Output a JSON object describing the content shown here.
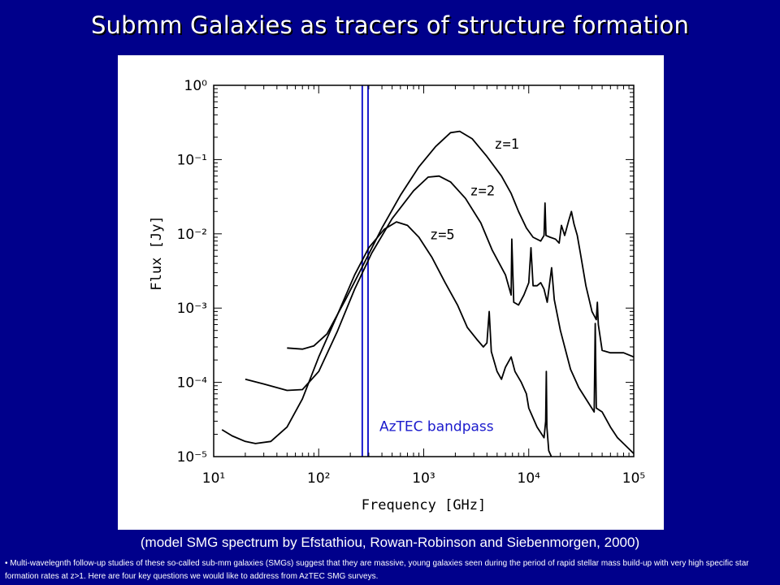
{
  "slide": {
    "title": "Submm Galaxies as tracers of structure formation",
    "caption": "(model SMG spectrum by Efstathiou, Rowan-Robinson and Siebenmorgen, 2000)",
    "footnote": "• Multi-wavelegnth follow-up studies of these so-called sub-mm galaxies (SMGs) suggest that they are massive, young galaxies seen during the period of rapid stellar mass build-up with very high specific star formation rates at z>1. Here are four key questions we would like to address from AzTEC SMG surveys."
  },
  "chart_data": {
    "type": "line",
    "title": "",
    "xlabel": "Frequency [GHz]",
    "ylabel": "Flux [Jy]",
    "xscale": "log",
    "yscale": "log",
    "xlim": [
      10,
      100000
    ],
    "ylim": [
      1e-05,
      1
    ],
    "x_tick_labels": [
      "10¹",
      "10²",
      "10³",
      "10⁴",
      "10⁵"
    ],
    "y_tick_labels": [
      "10⁰",
      "10⁻¹",
      "10⁻²",
      "10⁻³",
      "10⁻⁴",
      "10⁻⁵"
    ],
    "band": {
      "label": "AzTEC bandpass",
      "x_range": [
        260,
        295
      ],
      "color": "#1a1acc"
    },
    "series": [
      {
        "name": "z=1",
        "color": "#000000",
        "points": [
          [
            50,
            0.00029
          ],
          [
            70,
            0.00028
          ],
          [
            90,
            0.00031
          ],
          [
            120,
            0.00045
          ],
          [
            180,
            0.0013
          ],
          [
            270,
            0.004
          ],
          [
            400,
            0.012
          ],
          [
            600,
            0.033
          ],
          [
            900,
            0.08
          ],
          [
            1300,
            0.15
          ],
          [
            1800,
            0.23
          ],
          [
            2200,
            0.24
          ],
          [
            2900,
            0.19
          ],
          [
            4000,
            0.11
          ],
          [
            5500,
            0.06
          ],
          [
            6800,
            0.035
          ],
          [
            8000,
            0.02
          ],
          [
            9500,
            0.012
          ],
          [
            11000,
            0.009
          ],
          [
            13000,
            0.008
          ],
          [
            14000,
            0.0095
          ],
          [
            14300,
            0.026
          ],
          [
            14600,
            0.0095
          ],
          [
            16000,
            0.009
          ],
          [
            18000,
            0.0085
          ],
          [
            19500,
            0.0075
          ],
          [
            20500,
            0.013
          ],
          [
            22000,
            0.0095
          ],
          [
            24000,
            0.015
          ],
          [
            25500,
            0.02
          ],
          [
            27000,
            0.0135
          ],
          [
            29000,
            0.0095
          ],
          [
            31000,
            0.0055
          ],
          [
            35000,
            0.002
          ],
          [
            40000,
            0.0009
          ],
          [
            44000,
            0.0007
          ],
          [
            45000,
            0.0012
          ],
          [
            46000,
            0.0006
          ],
          [
            50000,
            0.00027
          ],
          [
            60000,
            0.00025
          ],
          [
            80000,
            0.00025
          ],
          [
            100000,
            0.00022
          ]
        ]
      },
      {
        "name": "z=2",
        "color": "#000000",
        "points": [
          [
            20,
            0.00011
          ],
          [
            30,
            9.5e-05
          ],
          [
            50,
            7.8e-05
          ],
          [
            70,
            8e-05
          ],
          [
            100,
            0.00014
          ],
          [
            150,
            0.00048
          ],
          [
            220,
            0.0018
          ],
          [
            320,
            0.0055
          ],
          [
            500,
            0.016
          ],
          [
            800,
            0.038
          ],
          [
            1100,
            0.058
          ],
          [
            1400,
            0.06
          ],
          [
            1800,
            0.05
          ],
          [
            2500,
            0.03
          ],
          [
            3500,
            0.014
          ],
          [
            4500,
            0.006
          ],
          [
            6000,
            0.0028
          ],
          [
            6800,
            0.0015
          ],
          [
            6900,
            0.0085
          ],
          [
            7200,
            0.0012
          ],
          [
            8000,
            0.0011
          ],
          [
            9000,
            0.0015
          ],
          [
            10000,
            0.0022
          ],
          [
            10500,
            0.0065
          ],
          [
            11000,
            0.002
          ],
          [
            12000,
            0.002
          ],
          [
            13000,
            0.0022
          ],
          [
            14000,
            0.0018
          ],
          [
            15000,
            0.0012
          ],
          [
            16500,
            0.0035
          ],
          [
            17500,
            0.0013
          ],
          [
            20000,
            0.0005
          ],
          [
            25000,
            0.00015
          ],
          [
            30000,
            8.5e-05
          ],
          [
            35000,
            6e-05
          ],
          [
            42000,
            4e-05
          ],
          [
            43000,
            0.00062
          ],
          [
            44000,
            4.5e-05
          ],
          [
            50000,
            4e-05
          ],
          [
            60000,
            2.5e-05
          ],
          [
            70000,
            1.8e-05
          ],
          [
            100000,
            1.1e-05
          ]
        ]
      },
      {
        "name": "z=5",
        "color": "#000000",
        "points": [
          [
            12,
            2.3e-05
          ],
          [
            15,
            1.9e-05
          ],
          [
            20,
            1.6e-05
          ],
          [
            25,
            1.5e-05
          ],
          [
            35,
            1.6e-05
          ],
          [
            50,
            2.5e-05
          ],
          [
            70,
            6e-05
          ],
          [
            100,
            0.00022
          ],
          [
            150,
            0.0008
          ],
          [
            220,
            0.0028
          ],
          [
            300,
            0.0065
          ],
          [
            420,
            0.0115
          ],
          [
            550,
            0.0145
          ],
          [
            700,
            0.013
          ],
          [
            900,
            0.009
          ],
          [
            1200,
            0.0048
          ],
          [
            1600,
            0.0022
          ],
          [
            2100,
            0.0011
          ],
          [
            2600,
            0.00055
          ],
          [
            3200,
            0.00038
          ],
          [
            3700,
            0.0003
          ],
          [
            4000,
            0.00034
          ],
          [
            4200,
            0.0009
          ],
          [
            4400,
            0.00026
          ],
          [
            5000,
            0.00014
          ],
          [
            5500,
            0.00011
          ],
          [
            6000,
            0.00016
          ],
          [
            6800,
            0.00022
          ],
          [
            7400,
            0.00014
          ],
          [
            8500,
            0.0001
          ],
          [
            9500,
            7e-05
          ],
          [
            10000,
            4.5e-05
          ],
          [
            12000,
            2.5e-05
          ],
          [
            14000,
            1.8e-05
          ],
          [
            14500,
            3e-05
          ],
          [
            14700,
            0.00014
          ],
          [
            14900,
            2.5e-05
          ],
          [
            15500,
            1.2e-05
          ],
          [
            17000,
            9e-06
          ]
        ]
      }
    ],
    "curve_labels": [
      {
        "text": "z=1",
        "series": "z=1"
      },
      {
        "text": "z=2",
        "series": "z=2"
      },
      {
        "text": "z=5",
        "series": "z=5"
      }
    ]
  }
}
